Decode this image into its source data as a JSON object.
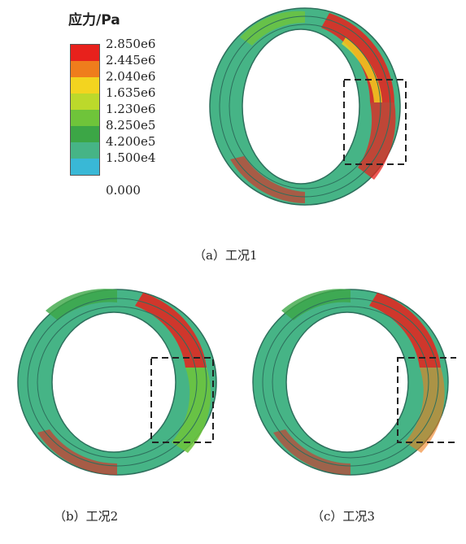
{
  "legend": {
    "title": "应力/Pa",
    "values": [
      "2.850e6",
      "2.445e6",
      "2.040e6",
      "1.635e6",
      "1.230e6",
      "8.250e5",
      "4.200e5",
      "1.500e4",
      "0.000"
    ],
    "colors": [
      "#e8211c",
      "#ef7d1c",
      "#f3d41f",
      "#bcd92b",
      "#6fc43a",
      "#3ca646",
      "#46b486",
      "#39b8d6"
    ]
  },
  "panels": [
    {
      "caption": "（a）工况1",
      "condition": "工况1"
    },
    {
      "caption": "（b）工况2",
      "condition": "工况2"
    },
    {
      "caption": "（c）工况3",
      "condition": "工况3"
    }
  ]
}
